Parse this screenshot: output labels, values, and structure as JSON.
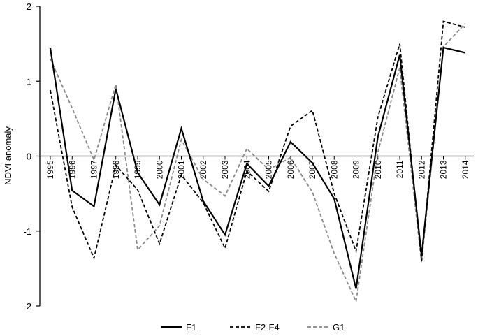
{
  "chart_data": {
    "type": "line",
    "title": "",
    "xlabel": "",
    "ylabel": "NDVI anomaly",
    "ylim": [
      -2,
      2
    ],
    "yticks": [
      "2",
      "1",
      "0",
      "-1",
      "-2"
    ],
    "grid": false,
    "legend_position": "bottom",
    "categories": [
      "1995",
      "1996",
      "1997",
      "1998",
      "1999",
      "2000",
      "2001",
      "2002",
      "2003",
      "2004",
      "2005",
      "2006",
      "2007",
      "2008",
      "2009",
      "2010",
      "2011",
      "2012",
      "2013",
      "2014"
    ],
    "series": [
      {
        "name": "F1",
        "color": "#000000",
        "dash": "solid",
        "values": [
          1.44,
          -0.46,
          -0.67,
          0.9,
          -0.22,
          -0.65,
          0.37,
          -0.6,
          -1.05,
          -0.1,
          -0.4,
          0.19,
          -0.09,
          -0.57,
          -1.77,
          0.26,
          1.35,
          -1.33,
          1.45,
          1.38
        ]
      },
      {
        "name": "F2-F4",
        "color": "#000000",
        "dash": "dashed",
        "values": [
          0.88,
          -0.68,
          -1.36,
          -0.12,
          -0.45,
          -1.17,
          -0.25,
          -0.62,
          -1.23,
          -0.2,
          -0.47,
          0.4,
          0.61,
          -0.5,
          -1.27,
          0.52,
          1.5,
          -1.4,
          1.8,
          1.72
        ]
      },
      {
        "name": "G1",
        "color": "#888888",
        "dash": "dashed",
        "values": [
          1.3,
          0.64,
          -0.05,
          0.96,
          -1.25,
          -0.93,
          0.22,
          -0.31,
          -0.53,
          0.1,
          -0.18,
          -0.02,
          -0.48,
          -1.3,
          -1.94,
          0.05,
          1.18,
          -1.42,
          1.46,
          1.77
        ]
      }
    ]
  }
}
